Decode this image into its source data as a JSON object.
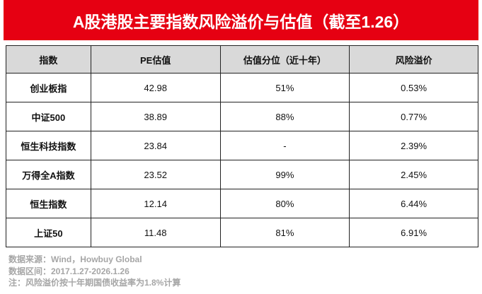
{
  "header": {
    "title": "A股港股主要指数风险溢价与估值（截至1.26）"
  },
  "table": {
    "columns": [
      "指数",
      "PE估值",
      "估值分位（近十年）",
      "风险溢价"
    ],
    "rows": [
      [
        "创业板指",
        "42.98",
        "51%",
        "0.53%"
      ],
      [
        "中证500",
        "38.89",
        "88%",
        "0.77%"
      ],
      [
        "恒生科技指数",
        "23.84",
        "-",
        "2.39%"
      ],
      [
        "万得全A指数",
        "23.52",
        "99%",
        "2.45%"
      ],
      [
        "恒生指数",
        "12.14",
        "80%",
        "6.44%"
      ],
      [
        "上证50",
        "11.48",
        "81%",
        "6.91%"
      ]
    ]
  },
  "notes": [
    "数据来源：Wind，Howbuy Global",
    "数据区间：2017.1.27-2026.1.26",
    "注：风险溢价按十年期国债收益率为1.8%计算"
  ]
}
